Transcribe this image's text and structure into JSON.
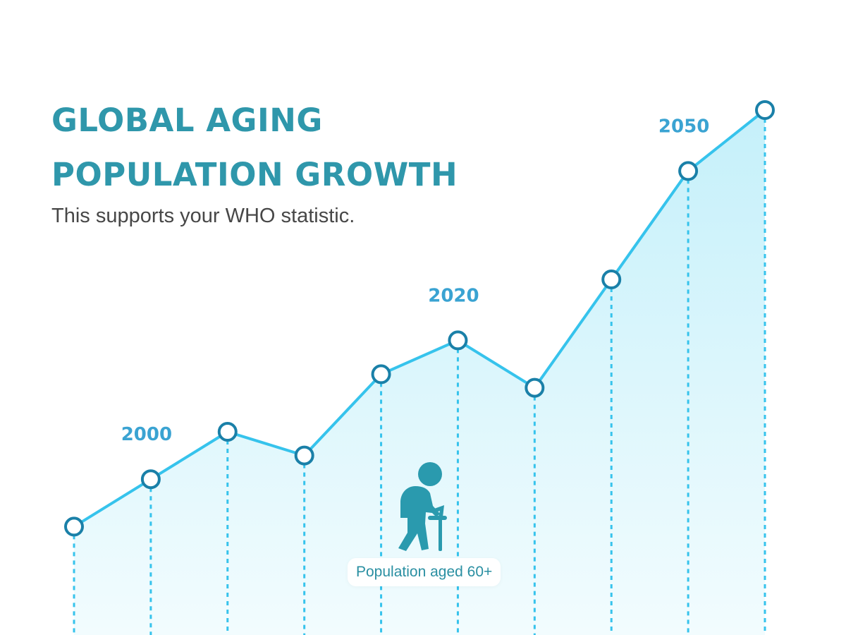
{
  "colors": {
    "title": "#2f97ab",
    "subtitle": "#474747",
    "line": "#36c3ec",
    "area_top": "#c5f0fa",
    "area_bottom": "#f2fcfe",
    "marker_stroke": "#1a80a8",
    "marker_fill": "#ffffff",
    "year_label": "#3aa3d2",
    "icon": "#2a9aae"
  },
  "title_lines": [
    "GLOBAL AGING",
    "POPULATION GROWTH"
  ],
  "subtitle": "This supports your WHO statistic.",
  "icon": "elderly-person-with-cane-icon",
  "chart_data": {
    "type": "area",
    "title": "GLOBAL AGING POPULATION GROWTH",
    "subtitle": "This supports your WHO statistic.",
    "xlabel": "",
    "ylabel": "",
    "grid": false,
    "legend": "none",
    "series": [
      {
        "name": "Population aged 60+",
        "values": [
          1.6,
          2.3,
          3.0,
          2.65,
          3.85,
          4.35,
          3.65,
          5.25,
          6.85,
          7.75
        ]
      }
    ],
    "point_labels": [
      {
        "index": 1,
        "text": "2000"
      },
      {
        "index": 5,
        "text": "2020"
      },
      {
        "index": 8,
        "text": "2050"
      }
    ],
    "ylim": [
      0,
      8.3
    ]
  }
}
